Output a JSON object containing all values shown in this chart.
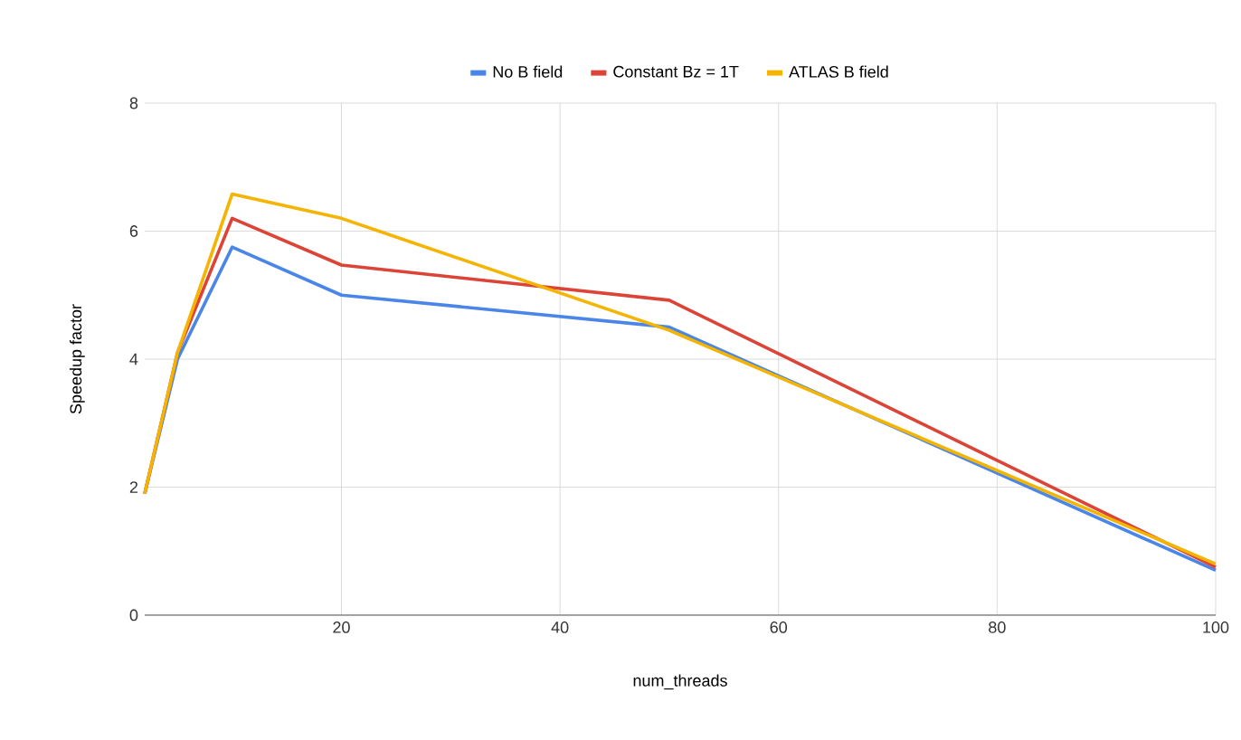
{
  "chart_data": {
    "type": "line",
    "xlabel": "num_threads",
    "ylabel": "Speedup factor",
    "x": [
      2,
      5,
      10,
      20,
      50,
      100
    ],
    "series": [
      {
        "name": "No B field",
        "color": "#4a86e8",
        "values": [
          1.9,
          4.0,
          5.75,
          5.0,
          4.5,
          0.7
        ]
      },
      {
        "name": "Constant Bz = 1T",
        "color": "#db4437",
        "values": [
          1.9,
          4.1,
          6.2,
          5.47,
          4.92,
          0.75
        ]
      },
      {
        "name": "ATLAS B field",
        "color": "#f4b400",
        "values": [
          1.9,
          4.1,
          6.58,
          6.2,
          4.45,
          0.8
        ]
      }
    ],
    "xlim": [
      2,
      100
    ],
    "ylim": [
      0,
      8
    ],
    "xticks": [
      20,
      40,
      60,
      80,
      100
    ],
    "yticks": [
      0,
      2,
      4,
      6,
      8
    ],
    "grid": true,
    "legend": "top",
    "marker": "none",
    "line_style": "solid"
  }
}
